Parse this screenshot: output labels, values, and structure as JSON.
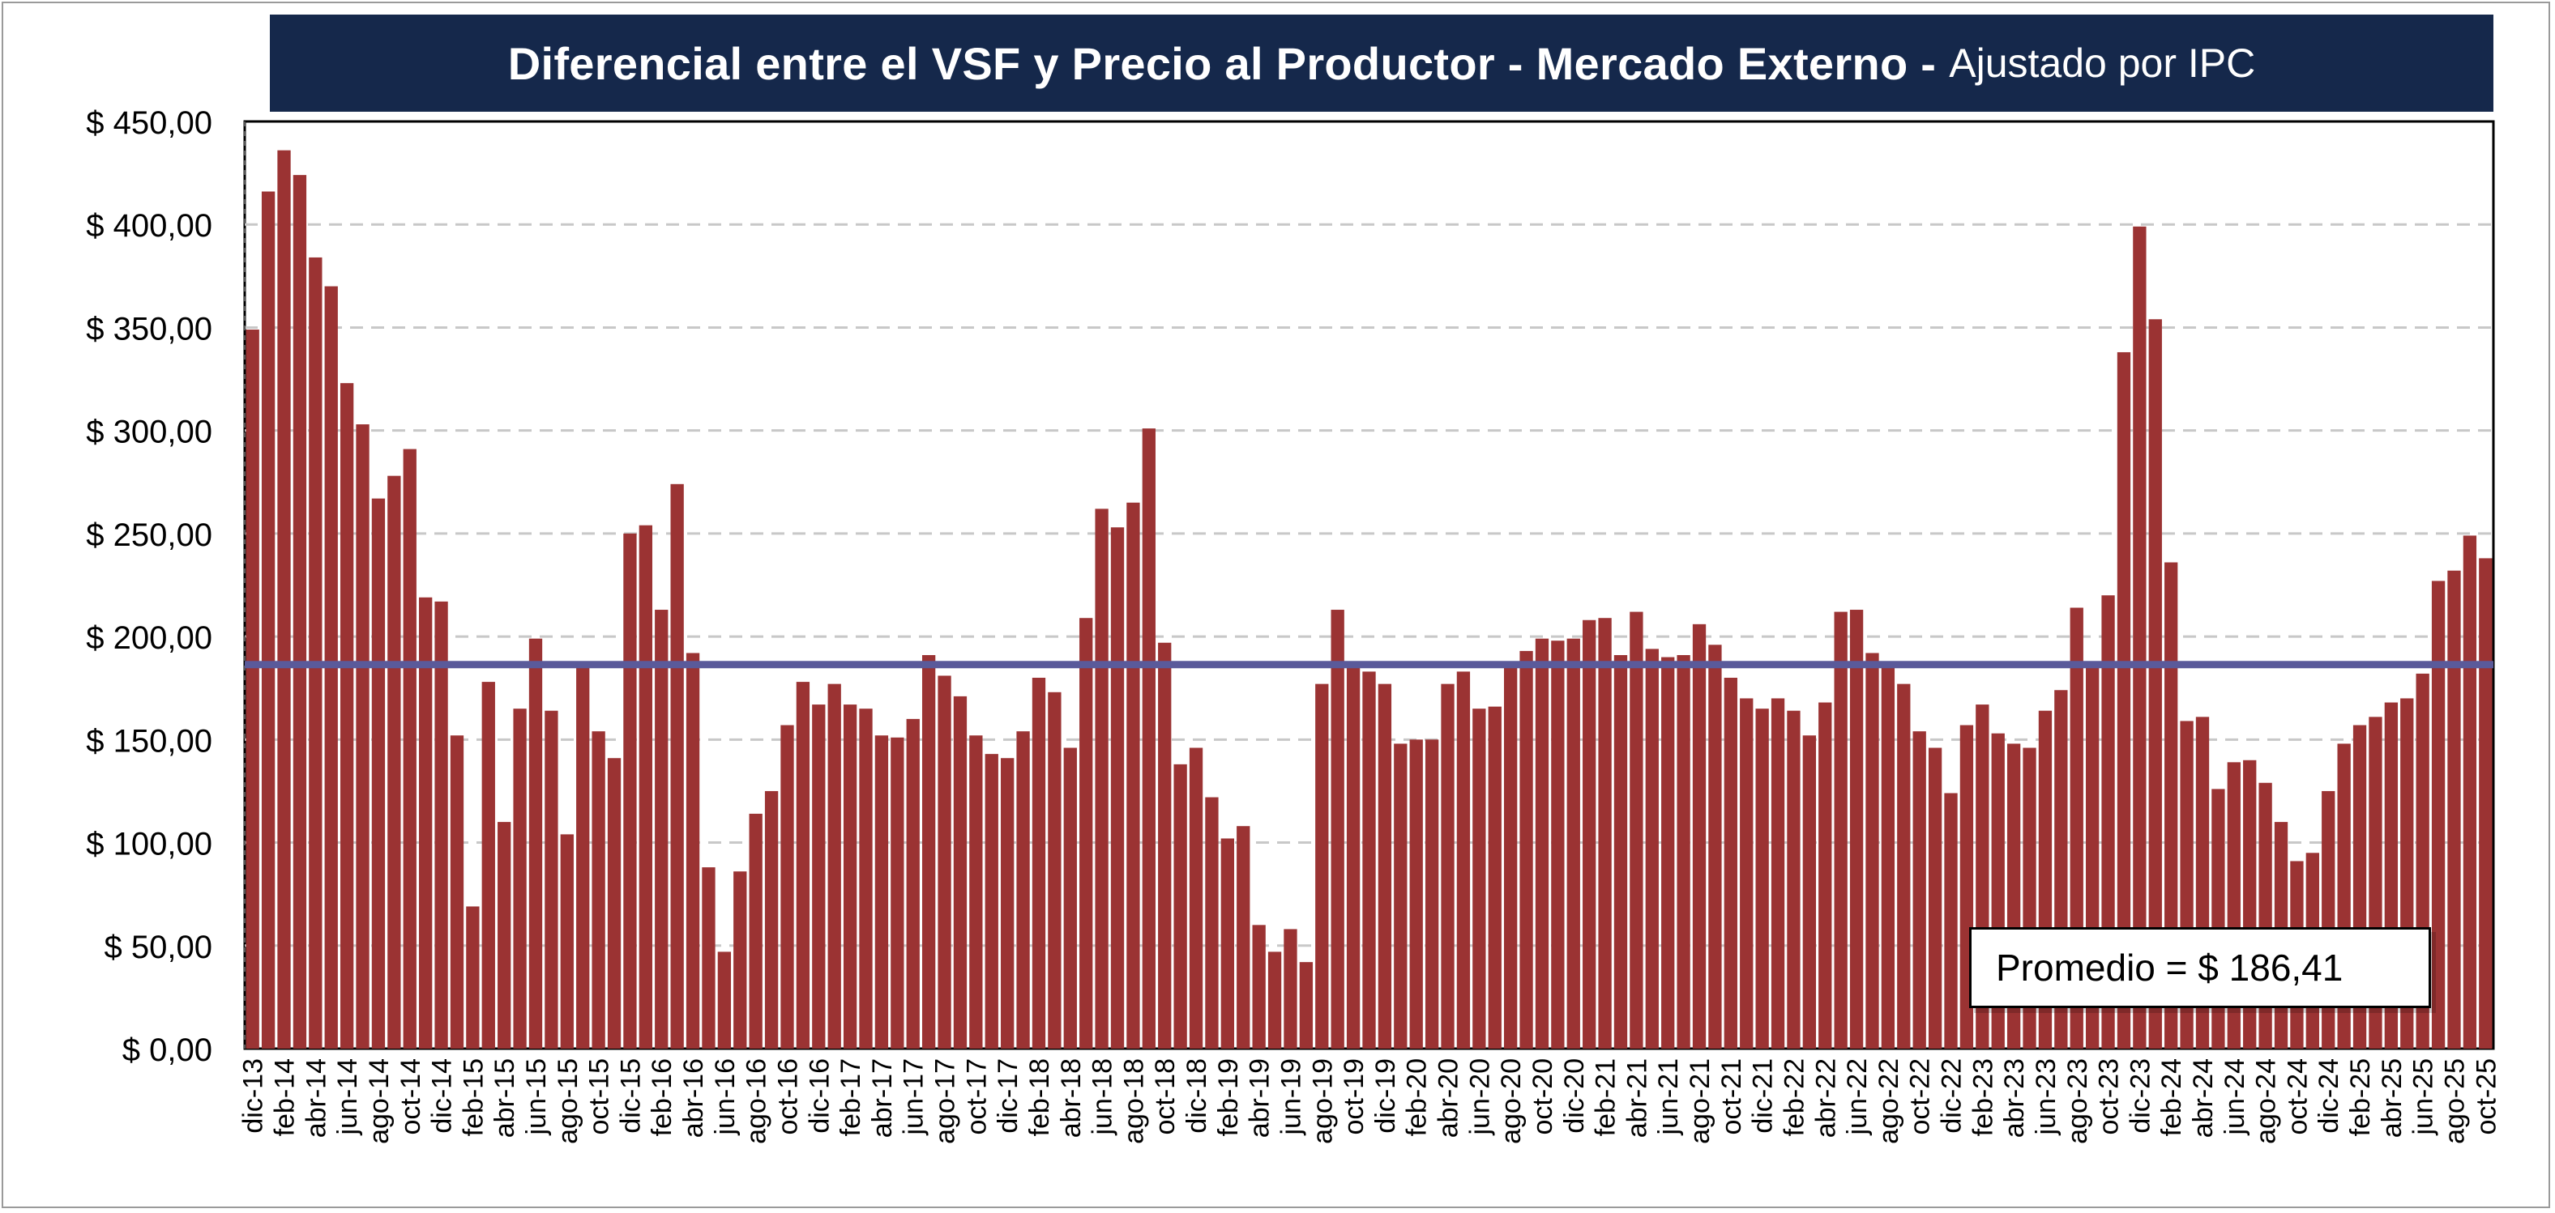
{
  "title": {
    "main": "Diferencial entre el VSF y Precio al Productor - Mercado Externo -",
    "sub": "Ajustado por IPC"
  },
  "annotation": "Promedio = $ 186,41",
  "colors": {
    "bar": "#9b3333",
    "average_line": "#5a5a9a",
    "title_bg": "#15284b",
    "grid": "#c8c8c8"
  },
  "chart_data": {
    "type": "bar",
    "title": "Diferencial entre el VSF y Precio al Productor - Mercado Externo - Ajustado por IPC",
    "xlabel": "",
    "ylabel": "",
    "ylim": [
      0,
      450
    ],
    "yticks": [
      0,
      50,
      100,
      150,
      200,
      250,
      300,
      350,
      400,
      450
    ],
    "ytick_labels": [
      "$ 0,00",
      "$ 50,00",
      "$ 100,00",
      "$ 150,00",
      "$ 200,00",
      "$ 250,00",
      "$ 300,00",
      "$ 350,00",
      "$ 400,00",
      "$ 450,00"
    ],
    "grid": "horizontal dashed",
    "average": 186.41,
    "categories": [
      "dic-13",
      "ene-14",
      "feb-14",
      "mar-14",
      "abr-14",
      "may-14",
      "jun-14",
      "jul-14",
      "ago-14",
      "sep-14",
      "oct-14",
      "nov-14",
      "dic-14",
      "ene-15",
      "feb-15",
      "mar-15",
      "abr-15",
      "may-15",
      "jun-15",
      "jul-15",
      "ago-15",
      "sep-15",
      "oct-15",
      "nov-15",
      "dic-15",
      "ene-16",
      "feb-16",
      "mar-16",
      "abr-16",
      "may-16",
      "jun-16",
      "jul-16",
      "ago-16",
      "sep-16",
      "oct-16",
      "nov-16",
      "dic-16",
      "ene-17",
      "feb-17",
      "mar-17",
      "abr-17",
      "may-17",
      "jun-17",
      "jul-17",
      "ago-17",
      "sep-17",
      "oct-17",
      "nov-17",
      "dic-17",
      "ene-18",
      "feb-18",
      "mar-18",
      "abr-18",
      "may-18",
      "jun-18",
      "jul-18",
      "ago-18",
      "sep-18",
      "oct-18",
      "nov-18",
      "dic-18",
      "ene-19",
      "feb-19",
      "mar-19",
      "abr-19",
      "may-19",
      "jun-19",
      "jul-19",
      "ago-19",
      "sep-19",
      "oct-19",
      "nov-19",
      "dic-19",
      "ene-20",
      "feb-20",
      "mar-20",
      "abr-20",
      "may-20",
      "jun-20",
      "jul-20",
      "ago-20",
      "sep-20",
      "oct-20",
      "nov-20",
      "dic-20",
      "ene-21",
      "feb-21",
      "mar-21",
      "abr-21",
      "may-21",
      "jun-21",
      "jul-21",
      "ago-21",
      "sep-21",
      "oct-21",
      "nov-21",
      "dic-21",
      "ene-22",
      "feb-22",
      "mar-22",
      "abr-22",
      "may-22",
      "jun-22",
      "jul-22",
      "ago-22",
      "sep-22",
      "oct-22",
      "nov-22",
      "dic-22",
      "ene-23",
      "feb-23",
      "mar-23",
      "abr-23",
      "may-23",
      "jun-23",
      "jul-23",
      "ago-23",
      "sep-23",
      "oct-23",
      "nov-23",
      "dic-23",
      "ene-24",
      "feb-24",
      "mar-24",
      "abr-24",
      "may-24",
      "jun-24",
      "jul-24",
      "ago-24",
      "sep-24",
      "oct-24",
      "nov-24",
      "dic-24",
      "ene-25",
      "feb-25",
      "mar-25",
      "abr-25",
      "may-25",
      "jun-25",
      "jul-25",
      "ago-25",
      "sep-25",
      "oct-25"
    ],
    "labeled_categories": [
      "dic-13",
      "feb-14",
      "abr-14",
      "jun-14",
      "ago-14",
      "oct-14",
      "dic-14",
      "feb-15",
      "abr-15",
      "jun-15",
      "ago-15",
      "oct-15",
      "dic-15",
      "feb-16",
      "abr-16",
      "jun-16",
      "ago-16",
      "oct-16",
      "dic-16",
      "feb-17",
      "abr-17",
      "jun-17",
      "ago-17",
      "oct-17",
      "dic-17",
      "feb-18",
      "abr-18",
      "jun-18",
      "ago-18",
      "oct-18",
      "dic-18",
      "feb-19",
      "abr-19",
      "jun-19",
      "ago-19",
      "oct-19",
      "dic-19",
      "feb-20",
      "abr-20",
      "jun-20",
      "ago-20",
      "oct-20",
      "dic-20",
      "feb-21",
      "abr-21",
      "jun-21",
      "ago-21",
      "oct-21",
      "dic-21",
      "feb-22",
      "abr-22",
      "jun-22",
      "ago-22",
      "oct-22",
      "dic-22",
      "feb-23",
      "abr-23",
      "jun-23",
      "ago-23",
      "oct-23",
      "dic-23",
      "feb-24",
      "abr-24",
      "jun-24",
      "ago-24",
      "oct-24",
      "dic-24",
      "feb-25",
      "abr-25",
      "jun-25",
      "ago-25",
      "oct-25"
    ],
    "values": [
      349,
      416,
      436,
      424,
      384,
      370,
      323,
      303,
      267,
      278,
      291,
      219,
      217,
      152,
      69,
      178,
      110,
      165,
      199,
      164,
      104,
      186,
      154,
      141,
      250,
      254,
      213,
      274,
      192,
      88,
      47,
      86,
      114,
      125,
      157,
      178,
      167,
      177,
      167,
      165,
      152,
      151,
      160,
      191,
      181,
      171,
      152,
      143,
      141,
      154,
      180,
      173,
      146,
      209,
      262,
      253,
      265,
      301,
      197,
      138,
      146,
      122,
      102,
      108,
      60,
      47,
      58,
      42,
      177,
      213,
      186,
      183,
      177,
      148,
      150,
      150,
      177,
      183,
      165,
      166,
      187,
      193,
      199,
      198,
      199,
      208,
      209,
      191,
      212,
      194,
      190,
      191,
      206,
      196,
      180,
      170,
      165,
      170,
      164,
      152,
      168,
      212,
      213,
      192,
      187,
      177,
      154,
      146,
      124,
      157,
      167,
      153,
      148,
      146,
      164,
      174,
      214,
      186,
      220,
      338,
      399,
      354,
      236,
      159,
      161,
      126,
      139,
      140,
      129,
      110,
      91,
      95,
      125,
      148,
      157,
      161,
      168,
      170,
      182,
      227,
      232,
      249,
      238
    ]
  }
}
